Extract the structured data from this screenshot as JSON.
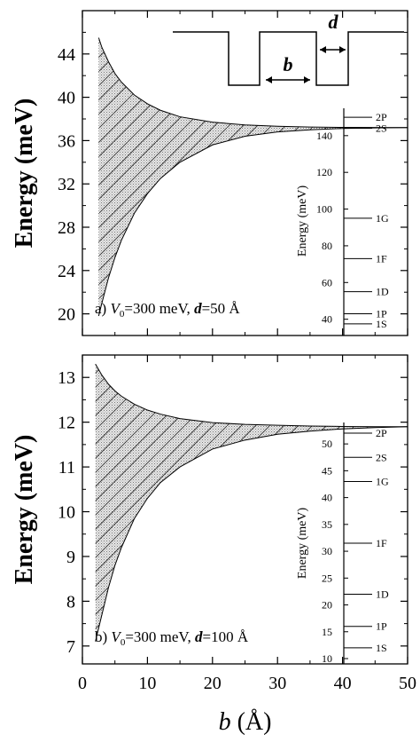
{
  "chart_data": [
    {
      "type": "area",
      "panel_label": "a)",
      "annotation": {
        "prefix": "a) ",
        "v_symbol": "V",
        "v_sub": "0",
        "v_value": "=300 meV, ",
        "d_symbol": "d",
        "d_value": "=50 Å"
      },
      "ylabel": "Energy (meV)",
      "ylim": [
        18,
        48
      ],
      "yticks": [
        20,
        24,
        28,
        32,
        36,
        40,
        44
      ],
      "xlim": [
        0,
        50
      ],
      "band_limit": 37.2,
      "band_upper": [
        [
          2.5,
          45.5
        ],
        [
          3,
          44.6
        ],
        [
          4,
          43.3
        ],
        [
          5,
          42.2
        ],
        [
          6,
          41.4
        ],
        [
          8,
          40.2
        ],
        [
          10,
          39.4
        ],
        [
          12,
          38.8
        ],
        [
          15,
          38.2
        ],
        [
          20,
          37.7
        ],
        [
          25,
          37.45
        ],
        [
          30,
          37.32
        ],
        [
          35,
          37.25
        ],
        [
          40,
          37.22
        ],
        [
          45,
          37.21
        ],
        [
          50,
          37.2
        ]
      ],
      "band_lower": [
        [
          2.5,
          19.8
        ],
        [
          3,
          21.0
        ],
        [
          4,
          23.3
        ],
        [
          5,
          25.2
        ],
        [
          6,
          26.8
        ],
        [
          8,
          29.3
        ],
        [
          10,
          31.1
        ],
        [
          12,
          32.5
        ],
        [
          15,
          34.0
        ],
        [
          20,
          35.6
        ],
        [
          25,
          36.4
        ],
        [
          30,
          36.8
        ],
        [
          35,
          37.0
        ],
        [
          40,
          37.12
        ],
        [
          45,
          37.17
        ],
        [
          50,
          37.2
        ]
      ],
      "potential_labels": {
        "b": "b",
        "d": "d"
      },
      "inset": {
        "ylabel": "Energy (meV)",
        "ylim": [
          35,
          152
        ],
        "yticks": [
          40,
          60,
          80,
          100,
          120,
          140
        ],
        "levels": [
          {
            "label": "2P",
            "energy": 150
          },
          {
            "label": "2S",
            "energy": 144
          },
          {
            "label": "1G",
            "energy": 95
          },
          {
            "label": "1F",
            "energy": 73
          },
          {
            "label": "1D",
            "energy": 55
          },
          {
            "label": "1P",
            "energy": 43
          },
          {
            "label": "1S",
            "energy": 37.5
          }
        ]
      }
    },
    {
      "type": "area",
      "panel_label": "b)",
      "annotation": {
        "prefix": "b) ",
        "v_symbol": "V",
        "v_sub": "0",
        "v_value": "=300 meV, ",
        "d_symbol": "d",
        "d_value": "=100 Å"
      },
      "ylabel": "Energy (meV)",
      "ylim": [
        6.6,
        13.5
      ],
      "yticks": [
        7,
        8,
        9,
        10,
        11,
        12,
        13
      ],
      "xlim": [
        0,
        50
      ],
      "xticks": [
        0,
        10,
        20,
        30,
        40,
        50
      ],
      "xlabel_symbol": "b",
      "xlabel_unit": " (Å)",
      "band_limit": 11.9,
      "band_upper": [
        [
          2,
          13.3
        ],
        [
          3,
          13.05
        ],
        [
          4,
          12.85
        ],
        [
          5,
          12.7
        ],
        [
          6,
          12.58
        ],
        [
          8,
          12.4
        ],
        [
          10,
          12.27
        ],
        [
          12,
          12.18
        ],
        [
          15,
          12.08
        ],
        [
          20,
          11.99
        ],
        [
          25,
          11.95
        ],
        [
          30,
          11.93
        ],
        [
          35,
          11.915
        ],
        [
          40,
          11.905
        ],
        [
          45,
          11.9
        ],
        [
          50,
          11.9
        ]
      ],
      "band_lower": [
        [
          2,
          7.1
        ],
        [
          3,
          7.7
        ],
        [
          4,
          8.3
        ],
        [
          5,
          8.8
        ],
        [
          6,
          9.2
        ],
        [
          8,
          9.85
        ],
        [
          10,
          10.3
        ],
        [
          12,
          10.65
        ],
        [
          15,
          11.0
        ],
        [
          20,
          11.4
        ],
        [
          25,
          11.6
        ],
        [
          30,
          11.73
        ],
        [
          35,
          11.8
        ],
        [
          40,
          11.85
        ],
        [
          45,
          11.88
        ],
        [
          50,
          11.9
        ]
      ],
      "inset": {
        "ylabel": "Energy (meV)",
        "ylim": [
          10,
          53
        ],
        "yticks": [
          10,
          15,
          20,
          25,
          30,
          35,
          40,
          45,
          50
        ],
        "levels": [
          {
            "label": "2P",
            "energy": 52
          },
          {
            "label": "2S",
            "energy": 47.5
          },
          {
            "label": "1G",
            "energy": 43
          },
          {
            "label": "1F",
            "energy": 31.5
          },
          {
            "label": "1D",
            "energy": 22
          },
          {
            "label": "1P",
            "energy": 16
          },
          {
            "label": "1S",
            "energy": 12
          }
        ]
      }
    }
  ]
}
